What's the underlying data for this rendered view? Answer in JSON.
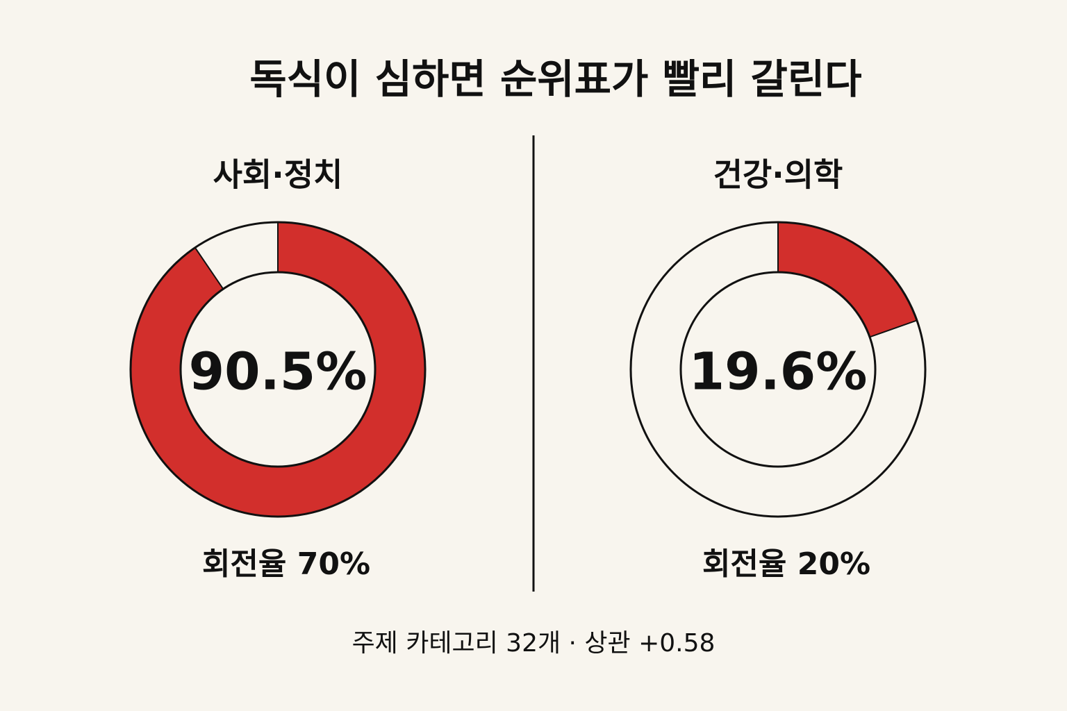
{
  "title": "독식이 심하면 순위표가 빨리 갈린다",
  "footnote": "주제 카테고리 32개 · 상관 +0.58",
  "chart_data": [
    {
      "type": "donut",
      "title": "사회·정치",
      "values": [
        90.5
      ],
      "value_labels": [
        "90.5%"
      ],
      "ylim": [
        0,
        100
      ],
      "color": "#d22f2c",
      "annotation": "회전율 70%"
    },
    {
      "type": "donut",
      "title": "건강·의학",
      "values": [
        19.6
      ],
      "value_labels": [
        "19.6%"
      ],
      "ylim": [
        0,
        100
      ],
      "color": "#d22f2c",
      "annotation": "회전율 20%"
    }
  ]
}
